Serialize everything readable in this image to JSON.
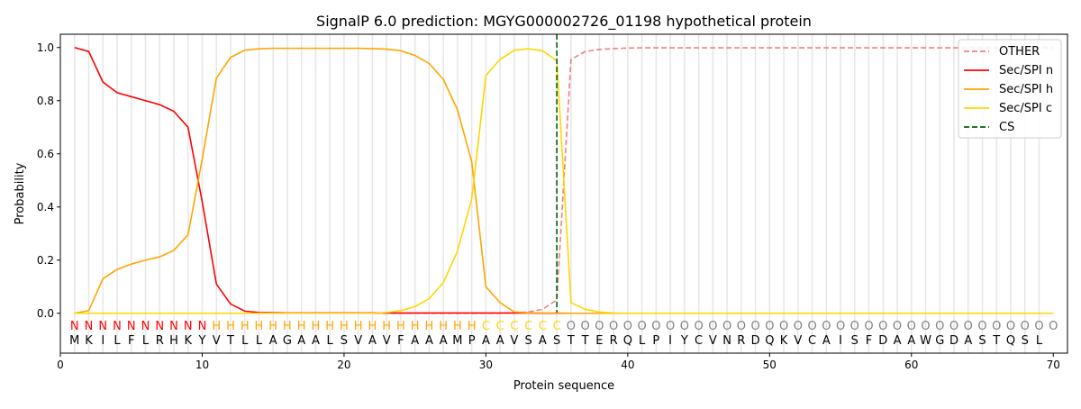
{
  "chart_data": {
    "type": "line",
    "title": "SignalP 6.0 prediction: MGYG000002726_01198 hypothetical protein",
    "xlabel": "Protein sequence",
    "ylabel": "Probability",
    "xlim": [
      0,
      71
    ],
    "ylim": [
      -0.15,
      1.05
    ],
    "xticks": [
      0,
      10,
      20,
      30,
      40,
      50,
      60,
      70
    ],
    "yticks": [
      0.0,
      0.2,
      0.4,
      0.6,
      0.8,
      1.0
    ],
    "legend_position": "top-right",
    "sequence": "MKILFLRHKYVTLLAGAALSVAVFAAAMPAAVSASTTERQLPIYCVNRDQKVCAISFDAAWGDASTQSL",
    "region_labels": "NNNNNNNNNNHHHHHHHHHHHHHHHHHHHCCCCCCOOOOOOOOOOOOOOOOOOOOOOOOOOOOOOOOOOO",
    "region_colors": {
      "N": "#ff0000",
      "H": "#ffa500",
      "C": "#ffd700",
      "O": "#808080"
    },
    "cs_position": 35,
    "series": [
      {
        "name": "OTHER",
        "color": "#f08080",
        "dash": true,
        "values": [
          0,
          0,
          0,
          0,
          0,
          0,
          0,
          0,
          0,
          0,
          0,
          0,
          0,
          0,
          0,
          0,
          0,
          0,
          0,
          0,
          0,
          0,
          0,
          0,
          0,
          0,
          0,
          0,
          0,
          0,
          0,
          0.002,
          0.005,
          0.015,
          0.05,
          0.955,
          0.985,
          0.993,
          0.996,
          0.998,
          0.999,
          0.999,
          0.999,
          0.999,
          0.999,
          0.999,
          0.999,
          0.999,
          0.999,
          0.999,
          0.999,
          0.999,
          0.999,
          0.999,
          0.999,
          0.999,
          0.999,
          0.999,
          0.999,
          0.999,
          0.999,
          0.999,
          0.999,
          0.999,
          0.999,
          0.999,
          0.999,
          0.999,
          0.999,
          0.999
        ]
      },
      {
        "name": "Sec/SPI n",
        "color": "#ff0000",
        "values": [
          1.0,
          0.985,
          0.87,
          0.83,
          0.815,
          0.8,
          0.785,
          0.76,
          0.7,
          0.42,
          0.11,
          0.035,
          0.008,
          0.003,
          0.002,
          0.001,
          0.001,
          0.001,
          0.001,
          0.001,
          0.001,
          0.001,
          0.001,
          0.001,
          0.001,
          0.001,
          0.001,
          0.001,
          0.001,
          0.001,
          0.001,
          0.001,
          0.001,
          0,
          0,
          0,
          0,
          0,
          0,
          0,
          0,
          0,
          0,
          0,
          0,
          0,
          0,
          0,
          0,
          0,
          0,
          0,
          0,
          0,
          0,
          0,
          0,
          0,
          0,
          0,
          0,
          0,
          0,
          0,
          0,
          0,
          0,
          0,
          0,
          0
        ]
      },
      {
        "name": "Sec/SPI h",
        "color": "#ffa500",
        "values": [
          0,
          0.01,
          0.13,
          0.165,
          0.185,
          0.2,
          0.212,
          0.237,
          0.295,
          0.58,
          0.885,
          0.963,
          0.99,
          0.995,
          0.997,
          0.997,
          0.997,
          0.997,
          0.997,
          0.997,
          0.997,
          0.996,
          0.994,
          0.988,
          0.97,
          0.94,
          0.88,
          0.765,
          0.57,
          0.1,
          0.04,
          0.005,
          0.002,
          0.001,
          0.001,
          0,
          0,
          0,
          0,
          0,
          0,
          0,
          0,
          0,
          0,
          0,
          0,
          0,
          0,
          0,
          0,
          0,
          0,
          0,
          0,
          0,
          0,
          0,
          0,
          0,
          0,
          0,
          0,
          0,
          0,
          0,
          0,
          0,
          0,
          0
        ]
      },
      {
        "name": "Sec/SPI c",
        "color": "#ffd700",
        "values": [
          0,
          0,
          0,
          0,
          0,
          0,
          0,
          0,
          0,
          0,
          0,
          0,
          0,
          0,
          0,
          0,
          0,
          0,
          0,
          0,
          0,
          0,
          0.003,
          0.01,
          0.025,
          0.055,
          0.115,
          0.235,
          0.43,
          0.895,
          0.955,
          0.99,
          0.995,
          0.988,
          0.95,
          0.04,
          0.015,
          0.005,
          0.001,
          0,
          0,
          0,
          0,
          0,
          0,
          0,
          0,
          0,
          0,
          0,
          0,
          0,
          0,
          0,
          0,
          0,
          0,
          0,
          0,
          0,
          0,
          0,
          0,
          0,
          0,
          0,
          0,
          0,
          0,
          0
        ]
      },
      {
        "name": "CS",
        "color": "#006400",
        "dash": true,
        "values": []
      }
    ]
  }
}
